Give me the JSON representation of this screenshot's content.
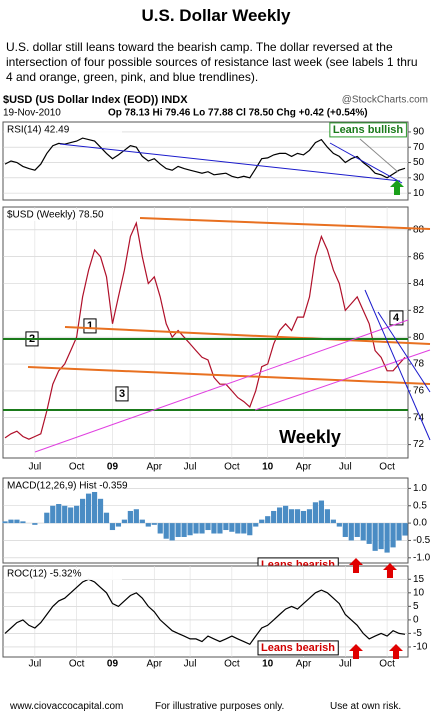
{
  "title": "U.S. Dollar Weekly",
  "intro": "U.S. dollar still leans toward the bearish camp.  The dollar reversed at the intersection of four possible sources of resistance last week (see labels 1 thru 4 and orange, green, pink, and blue trendlines).",
  "chart_header": {
    "symbol": "$USD (US Dollar Index (EOD)) INDX",
    "source": "@StockCharts.com",
    "date": "19-Nov-2010",
    "quote": "Op 78.13 Hi 79.46 Lo 77.88 Cl 78.50 Chg +0.42 (+0.54%)"
  },
  "chart_data": [
    {
      "type": "line",
      "ylim": [
        1,
        103
      ],
      "yticks": [
        90,
        70,
        50,
        30,
        10
      ],
      "grid": true,
      "series": [
        {
          "name": "RSI(14) 42.49",
          "color": "#000000",
          "values": [
            48,
            52,
            50,
            45,
            42,
            40,
            48,
            62,
            72,
            75,
            74,
            76,
            78,
            82,
            80,
            78,
            70,
            62,
            55,
            60,
            66,
            72,
            70,
            58,
            52,
            55,
            48,
            42,
            40,
            45,
            42,
            40,
            38,
            36,
            38,
            34,
            35,
            36,
            32,
            30,
            32,
            30,
            42,
            55,
            56,
            60,
            62,
            62,
            58,
            62,
            60,
            66,
            76,
            80,
            70,
            62,
            58,
            50,
            55,
            58,
            50,
            44,
            36,
            34,
            30,
            35,
            40,
            42.49
          ]
        }
      ],
      "annotations": [
        "Leans bullish"
      ]
    },
    {
      "type": "line",
      "ylim": [
        71.0,
        89.7
      ],
      "yticks": [
        72,
        74,
        76,
        78,
        80,
        82,
        84,
        86,
        88
      ],
      "grid": true,
      "categories": [
        null,
        null,
        null,
        null,
        null,
        "Jul",
        null,
        null,
        null,
        null,
        null,
        null,
        "Oct",
        null,
        null,
        null,
        null,
        null,
        "09",
        null,
        null,
        null,
        null,
        null,
        null,
        "Apr",
        null,
        null,
        null,
        null,
        null,
        "Jul",
        null,
        null,
        null,
        null,
        null,
        null,
        "Oct",
        null,
        null,
        null,
        null,
        null,
        "10",
        null,
        null,
        null,
        null,
        null,
        "Apr",
        null,
        null,
        null,
        null,
        null,
        null,
        "Jul",
        null,
        null,
        null,
        null,
        null,
        null,
        "Oct",
        null,
        null,
        null
      ],
      "series": [
        {
          "name": "$USD (Weekly) 78.50",
          "color": "#b0102a",
          "values": [
            72.5,
            72.8,
            73.0,
            72.6,
            72.4,
            72.6,
            72.8,
            74.5,
            76.5,
            77.5,
            78.0,
            79.0,
            80.0,
            83.0,
            85.0,
            86.5,
            86.0,
            84.5,
            81.0,
            83.0,
            85.0,
            87.5,
            88.5,
            86.0,
            84.0,
            84.5,
            83.0,
            81.0,
            80.0,
            80.5,
            80.0,
            79.5,
            79.0,
            78.5,
            78.3,
            77.0,
            76.5,
            76.5,
            76.0,
            75.5,
            75.2,
            74.8,
            76.0,
            77.8,
            78.0,
            79.5,
            80.5,
            81.0,
            80.5,
            81.5,
            81.5,
            83.0,
            86.0,
            87.5,
            86.5,
            85.0,
            84.0,
            82.0,
            82.5,
            83.0,
            82.0,
            81.0,
            79.0,
            78.5,
            77.5,
            77.5,
            78.0,
            78.5
          ]
        }
      ],
      "annotations": [
        "1",
        "2",
        "3",
        "4",
        "Weekly"
      ]
    },
    {
      "type": "bar",
      "ylim": [
        -1.15,
        1.3
      ],
      "yticks": [
        {
          "value": 1,
          "label": "1.0"
        },
        0.5,
        {
          "value": 0,
          "label": "0.0"
        },
        -0.5,
        {
          "value": -1,
          "label": "-1.0"
        }
      ],
      "grid": true,
      "series": [
        {
          "name": "MACD(12,26,9) Hist -0.359",
          "color": "#4a8cc4",
          "values": [
            0.05,
            0.1,
            0.1,
            0.05,
            0.0,
            -0.05,
            0.0,
            0.3,
            0.5,
            0.55,
            0.5,
            0.45,
            0.5,
            0.7,
            0.85,
            0.9,
            0.7,
            0.3,
            -0.2,
            -0.1,
            0.1,
            0.35,
            0.4,
            0.1,
            -0.1,
            -0.05,
            -0.3,
            -0.45,
            -0.5,
            -0.4,
            -0.4,
            -0.35,
            -0.3,
            -0.3,
            -0.2,
            -0.3,
            -0.3,
            -0.2,
            -0.25,
            -0.3,
            -0.3,
            -0.35,
            -0.1,
            0.1,
            0.2,
            0.35,
            0.45,
            0.5,
            0.4,
            0.4,
            0.35,
            0.4,
            0.6,
            0.65,
            0.4,
            0.1,
            -0.1,
            -0.4,
            -0.5,
            -0.4,
            -0.5,
            -0.6,
            -0.8,
            -0.75,
            -0.85,
            -0.7,
            -0.5,
            -0.359
          ]
        }
      ],
      "annotations": [
        "Leans bearish"
      ]
    },
    {
      "type": "line",
      "ylim": [
        -13.7,
        19.9
      ],
      "yticks": [
        15,
        10,
        5,
        0,
        -5,
        -10
      ],
      "grid": true,
      "categories": [
        null,
        null,
        null,
        null,
        null,
        "Jul",
        null,
        null,
        null,
        null,
        null,
        null,
        "Oct",
        null,
        null,
        null,
        null,
        null,
        "09",
        null,
        null,
        null,
        null,
        null,
        null,
        "Apr",
        null,
        null,
        null,
        null,
        null,
        "Jul",
        null,
        null,
        null,
        null,
        null,
        null,
        "Oct",
        null,
        null,
        null,
        null,
        null,
        "10",
        null,
        null,
        null,
        null,
        null,
        "Apr",
        null,
        null,
        null,
        null,
        null,
        null,
        "Jul",
        null,
        null,
        null,
        null,
        null,
        null,
        "Oct",
        null,
        null,
        null
      ],
      "series": [
        {
          "name": "ROC(12) -5.32%",
          "color": "#000000",
          "values": [
            -5,
            -3,
            -1,
            0,
            -2,
            -3,
            -1,
            2,
            5,
            7,
            8,
            10,
            12,
            14,
            15,
            14,
            12,
            10,
            6,
            5,
            7,
            9,
            10,
            8,
            5,
            3,
            0,
            -2,
            -4,
            -5,
            -6,
            -7,
            -7,
            -8,
            -6,
            -7,
            -8,
            -7,
            -6,
            -7,
            -8,
            -9,
            -6,
            -3,
            -2,
            0,
            2,
            4,
            5,
            4,
            6,
            8,
            10,
            11,
            10,
            8,
            6,
            2,
            0,
            -2,
            -5,
            -7,
            -6,
            -5,
            -6,
            -4,
            -5,
            -5.32
          ]
        }
      ],
      "annotations": [
        "Leans bearish"
      ]
    }
  ],
  "footer": [
    "www.ciovaccocapital.com",
    "For illustrative purposes only.",
    "Use at own risk."
  ]
}
